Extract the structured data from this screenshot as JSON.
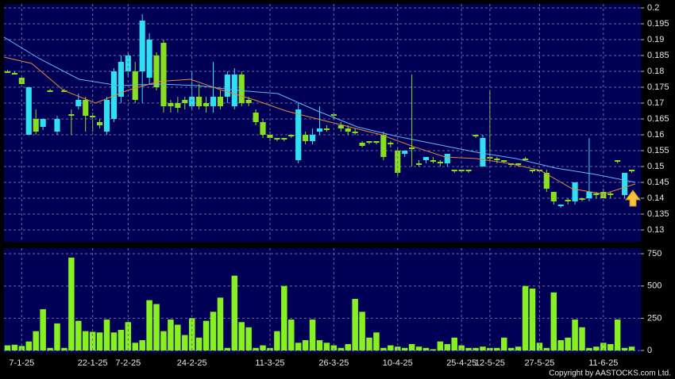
{
  "chart_data": [
    {
      "type": "candlestick",
      "ylim": [
        0.12625,
        0.20125
      ],
      "yticks": [
        0.2,
        0.195,
        0.19,
        0.185,
        0.18,
        0.175,
        0.17,
        0.165,
        0.16,
        0.155,
        0.15,
        0.145,
        0.14,
        0.135,
        0.13
      ],
      "grid": true,
      "up_color": "#2ee0f2",
      "down_color": "#86e020",
      "open": [
        0.18,
        0.1795,
        0.178,
        0.16,
        0.165,
        0.1625,
        0.174,
        0.161,
        0.174,
        0.1665,
        0.169,
        0.171,
        0.166,
        0.164,
        0.161,
        0.165,
        0.172,
        0.18,
        0.18,
        0.18,
        0.178,
        0.185,
        0.189,
        0.17,
        0.17,
        0.171,
        0.169,
        0.172,
        0.17,
        0.169,
        0.172,
        0.172,
        0.169,
        0.179,
        0.171,
        0.167,
        0.164,
        0.16,
        0.159,
        0.159,
        0.16,
        0.152,
        0.16,
        0.158,
        0.161,
        0.162,
        0.1665,
        0.163,
        0.162,
        0.161,
        0.1575,
        0.158,
        0.158,
        0.16,
        0.1575,
        0.155,
        0.154,
        0.156,
        0.151,
        0.152,
        0.152,
        0.1515,
        0.151,
        0.149,
        0.149,
        0.149,
        0.16,
        0.15,
        0.153,
        0.1525,
        0.152,
        0.151,
        0.151,
        0.1525,
        0.149,
        0.149,
        0.148,
        0.142,
        0.1375,
        0.1395,
        0.139,
        0.14,
        0.14,
        0.1415,
        0.142,
        0.1415,
        0.152,
        0.141,
        0.149
      ],
      "high": [
        0.1805,
        0.18,
        0.178,
        0.175,
        0.168,
        0.165,
        0.1745,
        0.166,
        0.1745,
        0.168,
        0.173,
        0.172,
        0.167,
        0.165,
        0.172,
        0.181,
        0.185,
        0.186,
        0.183,
        0.198,
        0.192,
        0.186,
        0.19,
        0.171,
        0.172,
        0.172,
        0.18,
        0.176,
        0.172,
        0.183,
        0.174,
        0.18,
        0.181,
        0.18,
        0.172,
        0.168,
        0.165,
        0.161,
        0.159,
        0.159,
        0.16,
        0.17,
        0.161,
        0.162,
        0.169,
        0.163,
        0.167,
        0.164,
        0.163,
        0.162,
        0.158,
        0.158,
        0.158,
        0.161,
        0.158,
        0.156,
        0.155,
        0.179,
        0.152,
        0.153,
        0.153,
        0.152,
        0.154,
        0.149,
        0.149,
        0.149,
        0.16,
        0.16,
        0.174,
        0.153,
        0.152,
        0.151,
        0.151,
        0.153,
        0.149,
        0.149,
        0.149,
        0.142,
        0.138,
        0.14,
        0.145,
        0.14,
        0.159,
        0.142,
        0.143,
        0.142,
        0.152,
        0.148,
        0.149
      ],
      "low": [
        0.1795,
        0.179,
        0.176,
        0.16,
        0.16,
        0.1615,
        0.1735,
        0.16,
        0.1735,
        0.16,
        0.168,
        0.161,
        0.161,
        0.162,
        0.16,
        0.164,
        0.17,
        0.178,
        0.17,
        0.17,
        0.176,
        0.174,
        0.167,
        0.167,
        0.167,
        0.168,
        0.168,
        0.168,
        0.167,
        0.167,
        0.168,
        0.17,
        0.168,
        0.169,
        0.169,
        0.163,
        0.159,
        0.158,
        0.158,
        0.158,
        0.159,
        0.151,
        0.157,
        0.157,
        0.16,
        0.161,
        0.165,
        0.161,
        0.16,
        0.16,
        0.156,
        0.157,
        0.157,
        0.152,
        0.156,
        0.147,
        0.153,
        0.15,
        0.15,
        0.151,
        0.151,
        0.15,
        0.15,
        0.148,
        0.148,
        0.148,
        0.159,
        0.15,
        0.152,
        0.151,
        0.151,
        0.15,
        0.15,
        0.152,
        0.148,
        0.148,
        0.142,
        0.138,
        0.137,
        0.138,
        0.138,
        0.139,
        0.139,
        0.14,
        0.14,
        0.14,
        0.151,
        0.14,
        0.148
      ],
      "close": [
        0.1795,
        0.179,
        0.176,
        0.175,
        0.161,
        0.165,
        0.1735,
        0.165,
        0.1735,
        0.166,
        0.171,
        0.166,
        0.1655,
        0.163,
        0.171,
        0.18,
        0.183,
        0.185,
        0.171,
        0.196,
        0.19,
        0.175,
        0.169,
        0.169,
        0.1685,
        0.17,
        0.172,
        0.169,
        0.169,
        0.172,
        0.169,
        0.179,
        0.179,
        0.17,
        0.17,
        0.164,
        0.16,
        0.159,
        0.1585,
        0.1585,
        0.1595,
        0.168,
        0.158,
        0.16,
        0.162,
        0.1615,
        0.166,
        0.162,
        0.161,
        0.1605,
        0.1565,
        0.1575,
        0.1575,
        0.153,
        0.157,
        0.148,
        0.155,
        0.1555,
        0.1505,
        0.153,
        0.1515,
        0.151,
        0.154,
        0.1485,
        0.1485,
        0.1485,
        0.1595,
        0.159,
        0.1525,
        0.152,
        0.1515,
        0.1505,
        0.1505,
        0.152,
        0.1485,
        0.1485,
        0.143,
        0.139,
        0.138,
        0.139,
        0.145,
        0.1395,
        0.142,
        0.141,
        0.14,
        0.141,
        0.1515,
        0.148,
        0.1485
      ],
      "series": [
        {
          "color": "#62b8f2",
          "x": [
            -0.5,
            4.5,
            10.1,
            15.7,
            21.3,
            26.9,
            32.5,
            38.1,
            43.7,
            49.3,
            54.9,
            60.5,
            66.1,
            71.7,
            77.3,
            82.9,
            88.5
          ],
          "values": [
            0.1908,
            0.184,
            0.1775,
            0.1755,
            0.176,
            0.1755,
            0.174,
            0.173,
            0.1675,
            0.1625,
            0.1595,
            0.157,
            0.1545,
            0.1525,
            0.1495,
            0.1475,
            0.145
          ]
        },
        {
          "color": "#e8883a",
          "x": [
            -0.5,
            3.4,
            7.9,
            12.4,
            16.9,
            21.3,
            25.8,
            30.3,
            34.8,
            39.3,
            43.7,
            48.2,
            52.7,
            57.2,
            61.7,
            66.1,
            70.6,
            75.1,
            79.6,
            84.0,
            88.5
          ],
          "values": [
            0.1845,
            0.1825,
            0.174,
            0.17,
            0.174,
            0.1768,
            0.1775,
            0.174,
            0.171,
            0.1675,
            0.165,
            0.1625,
            0.16,
            0.1563,
            0.153,
            0.1525,
            0.151,
            0.1488,
            0.143,
            0.1413,
            0.1445
          ]
        }
      ]
    },
    {
      "type": "bar",
      "categories": [
        null,
        null,
        "7-1-25",
        null,
        null,
        null,
        null,
        null,
        null,
        null,
        null,
        null,
        "22-1-25",
        null,
        null,
        null,
        null,
        "7-2-25",
        null,
        null,
        null,
        null,
        null,
        null,
        null,
        null,
        "24-2-25",
        null,
        null,
        null,
        null,
        null,
        null,
        null,
        null,
        null,
        null,
        "11-3-25",
        null,
        null,
        null,
        null,
        null,
        null,
        null,
        null,
        "26-3-25",
        null,
        null,
        null,
        null,
        null,
        null,
        null,
        null,
        "10-4-25",
        null,
        null,
        null,
        null,
        null,
        null,
        null,
        null,
        "25-4-25",
        null,
        null,
        null,
        "12-5-25",
        null,
        null,
        null,
        null,
        null,
        null,
        "27-5-25",
        null,
        null,
        null,
        null,
        null,
        null,
        null,
        null,
        "11-6-25",
        null,
        null,
        null,
        null
      ],
      "values": [
        40,
        45,
        35,
        70,
        150,
        320,
        20,
        210,
        20,
        720,
        230,
        150,
        145,
        140,
        240,
        140,
        160,
        220,
        60,
        80,
        390,
        360,
        150,
        240,
        200,
        120,
        250,
        100,
        230,
        300,
        410,
        20,
        580,
        220,
        180,
        20,
        40,
        20,
        150,
        500,
        240,
        60,
        80,
        240,
        80,
        60,
        40,
        20,
        50,
        400,
        300,
        100,
        140,
        20,
        40,
        30,
        20,
        50,
        30,
        20,
        10,
        70,
        50,
        100,
        40,
        20,
        20,
        30,
        20,
        20,
        100,
        20,
        30,
        500,
        480,
        60,
        20,
        450,
        80,
        100,
        240,
        180,
        20,
        30,
        60,
        50,
        240,
        20,
        30
      ],
      "color": "#86f020",
      "ylim": [
        -18,
        793
      ],
      "yticks": [
        750,
        500,
        250,
        0
      ],
      "grid": true
    }
  ],
  "copyright": "Copyright by AASTOCKS.com Ltd."
}
